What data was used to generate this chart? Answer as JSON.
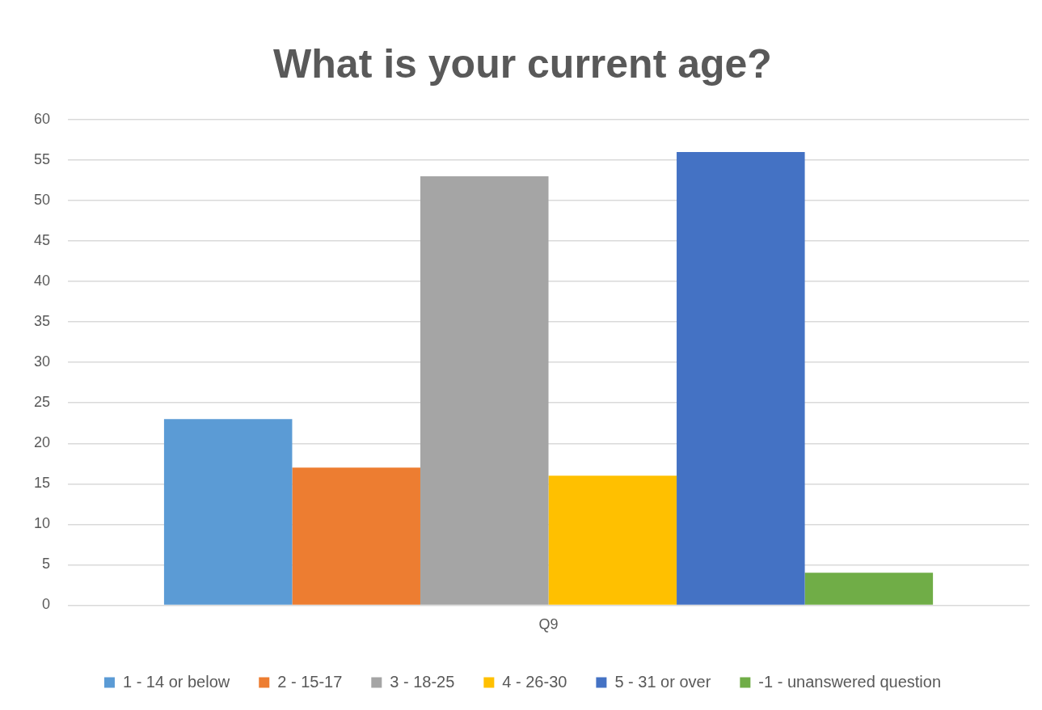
{
  "chart_data": {
    "type": "bar",
    "title": "What is your current age?",
    "categories": [
      "Q9"
    ],
    "series": [
      {
        "name": "1 - 14 or below",
        "color": "#5b9bd5",
        "values": [
          23
        ]
      },
      {
        "name": "2 - 15-17",
        "color": "#ed7d31",
        "values": [
          17
        ]
      },
      {
        "name": "3 - 18-25",
        "color": "#a5a5a5",
        "values": [
          53
        ]
      },
      {
        "name": "4 - 26-30",
        "color": "#ffc000",
        "values": [
          16
        ]
      },
      {
        "name": "5 - 31 or over",
        "color": "#4472c4",
        "values": [
          56
        ]
      },
      {
        "name": "-1 - unanswered question",
        "color": "#70ad47",
        "values": [
          4
        ]
      }
    ],
    "ylim": [
      0,
      60
    ],
    "yticks": [
      0,
      5,
      10,
      15,
      20,
      25,
      30,
      35,
      40,
      45,
      50,
      55,
      60
    ],
    "grid": "y",
    "legend": "bottom"
  }
}
